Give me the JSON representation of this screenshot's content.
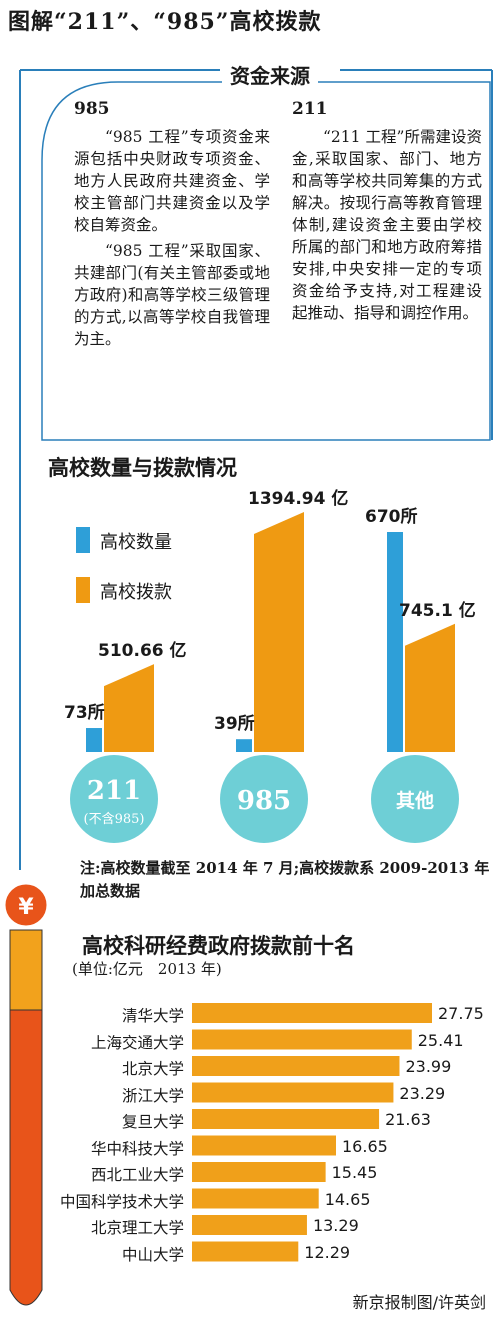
{
  "header": {
    "title": "图解“211”、“985”高校拨款"
  },
  "funding_source": {
    "title": "资金来源",
    "col_985": {
      "heading": "985",
      "para1": "“985 工程”专项资金来源包括中央财政专项资金、地方人民政府共建资金、学校主管部门共建资金以及学校自筹资金。",
      "para2": "“985 工程”采取国家、共建部门(有关主管部委或地方政府)和高等学校三级管理的方式,以高等学校自我管理为主。"
    },
    "col_211": {
      "heading": "211",
      "para1": "“211 工程”所需建设资金,采取国家、部门、地方和高等学校共同筹集的方式解决。按现行高等教育管理体制,建设资金主要由学校所属的部门和地方政府筹措安排,中央安排一定的专项资金给予支持,对工程建设起推动、指导和调控作用。"
    }
  },
  "colors": {
    "blue": "#2e9fd8",
    "orange": "#ef9a12",
    "teal": "#6ecfd6",
    "bar_orange": "#f0a01a",
    "frame": "#2a7fba"
  },
  "yuan_icon": "yuan-coin-icon",
  "chart_data": [
    {
      "type": "bar",
      "title": "高校数量与拨款情况",
      "legend": [
        "高校数量",
        "高校拨款"
      ],
      "categories": [
        "211",
        "985",
        "其他"
      ],
      "category_sub": [
        "(不含985)",
        "",
        ""
      ],
      "series": [
        {
          "name": "高校数量",
          "values": [
            73,
            39,
            670
          ],
          "labels": [
            "73所",
            "39所",
            "670所"
          ]
        },
        {
          "name": "高校拨款",
          "values": [
            510.66,
            1394.94,
            745.1
          ],
          "labels": [
            "510.66 亿",
            "1394.94 亿",
            "745.1 亿"
          ]
        }
      ]
    },
    {
      "type": "bar",
      "orientation": "horizontal",
      "title": "高校科研经费政府拨款前十名",
      "subtitle": "(单位:亿元　2013 年)",
      "categories": [
        "清华大学",
        "上海交通大学",
        "北京大学",
        "浙江大学",
        "复旦大学",
        "华中科技大学",
        "西北工业大学",
        "中国科学技术大学",
        "北京理工大学",
        "中山大学"
      ],
      "values": [
        27.75,
        25.41,
        23.99,
        23.29,
        21.63,
        16.65,
        15.45,
        14.65,
        13.29,
        12.29
      ],
      "labels": [
        "27.75",
        "25.41",
        "23.99",
        "23.29",
        "21.63",
        "16.65",
        "15.45",
        "14.65",
        "13.29",
        "12.29"
      ]
    }
  ],
  "note": "注:高校数量截至 2014 年 7 月;高校拨款系 2009-2013 年加总数据",
  "credit": "新京报制图/许英剑"
}
